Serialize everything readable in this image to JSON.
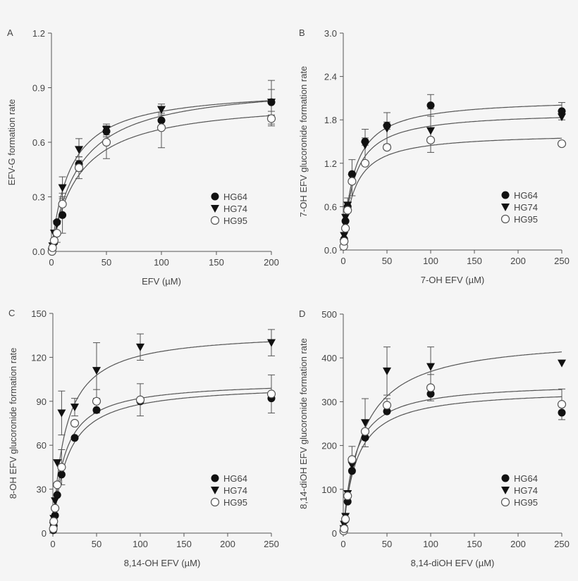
{
  "chart_data": [
    {
      "panel": "A",
      "type": "scatter",
      "xlabel": "EFV (µM)",
      "ylabel": "EFV-G formation rate",
      "xlim": [
        0,
        200
      ],
      "ylim": [
        0,
        1.2
      ],
      "xticks": [
        0,
        50,
        100,
        150,
        200
      ],
      "yticks": [
        "0.0",
        "0.3",
        "0.6",
        "0.9",
        "1.2"
      ],
      "x": [
        0.5,
        1,
        2.5,
        5,
        10,
        25,
        50,
        100,
        200
      ],
      "legend": "bottom-right",
      "series": [
        {
          "name": "HG64",
          "marker": "filled-circle",
          "values": [
            0.01,
            0.02,
            0.05,
            0.16,
            0.2,
            0.48,
            0.66,
            0.72,
            0.82
          ],
          "err": [
            0,
            0,
            0,
            0,
            0.1,
            0.04,
            0.03,
            0.04,
            0.12
          ],
          "fit": {
            "vmax": 0.93,
            "km": 25
          }
        },
        {
          "name": "HG74",
          "marker": "filled-triangle-down",
          "values": [
            0.0,
            0.03,
            0.1,
            0.15,
            0.35,
            0.56,
            0.67,
            0.78,
            0.82
          ],
          "err": [
            0,
            0,
            0,
            0,
            0.06,
            0.06,
            0.03,
            0.03,
            0.07
          ],
          "fit": {
            "vmax": 0.9,
            "km": 17
          }
        },
        {
          "name": "HG95",
          "marker": "open-circle",
          "values": [
            0.0,
            0.02,
            0.06,
            0.1,
            0.26,
            0.46,
            0.6,
            0.68,
            0.73
          ],
          "err": [
            0,
            0,
            0,
            0.05,
            0.06,
            0.06,
            0.09,
            0.11,
            0.04
          ],
          "fit": {
            "vmax": 0.84,
            "km": 25
          }
        }
      ]
    },
    {
      "panel": "B",
      "type": "scatter",
      "xlabel": "7-OH EFV (µM)",
      "ylabel": "7-OH EFV glucoronide formation rate",
      "xlim": [
        0,
        250
      ],
      "ylim": [
        0,
        3.0
      ],
      "xticks": [
        0,
        50,
        100,
        150,
        200,
        250
      ],
      "yticks": [
        "0.0",
        "0.6",
        "1.2",
        "1.8",
        "2.4",
        "3.0"
      ],
      "x": [
        0.5,
        1,
        2.5,
        5,
        10,
        25,
        50,
        100,
        250
      ],
      "legend": "bottom-right",
      "series": [
        {
          "name": "HG64",
          "marker": "filled-circle",
          "values": [
            0.05,
            0.15,
            0.4,
            0.6,
            1.05,
            1.5,
            1.72,
            2.0,
            1.92
          ],
          "err": [
            0,
            0,
            0,
            0,
            0,
            0.05,
            0.05,
            0.15,
            0.12
          ],
          "fit": {
            "vmax": 2.1,
            "km": 12
          }
        },
        {
          "name": "HG74",
          "marker": "filled-triangle-down",
          "values": [
            0.1,
            0.2,
            0.45,
            0.62,
            1.0,
            1.45,
            1.68,
            1.65,
            1.84
          ],
          "err": [
            0,
            0,
            0,
            0.1,
            0.25,
            0.22,
            0.22,
            0.3,
            0
          ],
          "fit": {
            "vmax": 1.92,
            "km": 12
          }
        },
        {
          "name": "HG95",
          "marker": "open-circle",
          "values": [
            0.05,
            0.12,
            0.3,
            0.55,
            0.95,
            1.2,
            1.42,
            1.52,
            1.47
          ],
          "err": [
            0,
            0,
            0,
            0,
            0,
            0,
            0,
            0,
            0
          ],
          "fit": {
            "vmax": 1.62,
            "km": 12
          }
        }
      ]
    },
    {
      "panel": "C",
      "type": "scatter",
      "xlabel": "8,14-OH EFV (µM)",
      "ylabel": "8-OH EFV glucoronide formation rate",
      "xlim": [
        0,
        250
      ],
      "ylim": [
        0,
        150
      ],
      "xticks": [
        0,
        50,
        100,
        150,
        200,
        250
      ],
      "yticks": [
        "0",
        "30",
        "60",
        "90",
        "120",
        "150"
      ],
      "x": [
        0.5,
        1,
        2.5,
        5,
        10,
        25,
        50,
        100,
        250
      ],
      "legend": "bottom-right",
      "series": [
        {
          "name": "HG64",
          "marker": "filled-circle",
          "values": [
            2,
            5,
            12,
            26,
            40,
            65,
            84,
            90,
            92
          ],
          "err": [
            0,
            0,
            0,
            0,
            0,
            0,
            0,
            0,
            0
          ],
          "fit": {
            "vmax": 102,
            "km": 16
          }
        },
        {
          "name": "HG74",
          "marker": "filled-triangle-down",
          "values": [
            5,
            10,
            22,
            48,
            82,
            86,
            111,
            127,
            130
          ],
          "err": [
            0,
            0,
            0,
            0,
            15,
            6,
            19,
            9,
            9
          ],
          "fit": {
            "vmax": 138,
            "km": 14
          }
        },
        {
          "name": "HG95",
          "marker": "open-circle",
          "values": [
            3,
            8,
            17,
            33,
            45,
            75,
            90,
            91,
            95
          ],
          "err": [
            0,
            0,
            0,
            0,
            12,
            0,
            8,
            11,
            13
          ],
          "fit": {
            "vmax": 104,
            "km": 13
          }
        }
      ]
    },
    {
      "panel": "D",
      "type": "scatter",
      "xlabel": "8,14-diOH EFV (µM)",
      "ylabel": "8,14-diOH EFV glucoronide formation rate",
      "xlim": [
        0,
        250
      ],
      "ylim": [
        0,
        500
      ],
      "xticks": [
        0,
        50,
        100,
        150,
        200,
        250
      ],
      "yticks": [
        "0",
        "100",
        "200",
        "300",
        "400",
        "500"
      ],
      "x": [
        0.5,
        1,
        2.5,
        5,
        10,
        25,
        50,
        100,
        250
      ],
      "legend": "bottom-right",
      "series": [
        {
          "name": "HG64",
          "marker": "filled-circle",
          "values": [
            5,
            12,
            30,
            72,
            142,
            218,
            278,
            318,
            275
          ],
          "err": [
            0,
            0,
            0,
            0,
            0,
            0,
            0,
            0,
            0
          ],
          "fit": {
            "vmax": 330,
            "km": 15
          }
        },
        {
          "name": "HG74",
          "marker": "filled-triangle-down",
          "values": [
            10,
            20,
            38,
            90,
            155,
            252,
            370,
            380,
            388
          ],
          "err": [
            0,
            0,
            0,
            0,
            0,
            55,
            55,
            45,
            0
          ],
          "fit": {
            "vmax": 450,
            "km": 22
          }
        },
        {
          "name": "HG95",
          "marker": "open-circle",
          "values": [
            5,
            10,
            32,
            85,
            168,
            232,
            292,
            332,
            294
          ],
          "err": [
            0,
            0,
            0,
            0,
            30,
            0,
            15,
            30,
            35
          ],
          "fit": {
            "vmax": 345,
            "km": 13
          }
        }
      ]
    }
  ]
}
